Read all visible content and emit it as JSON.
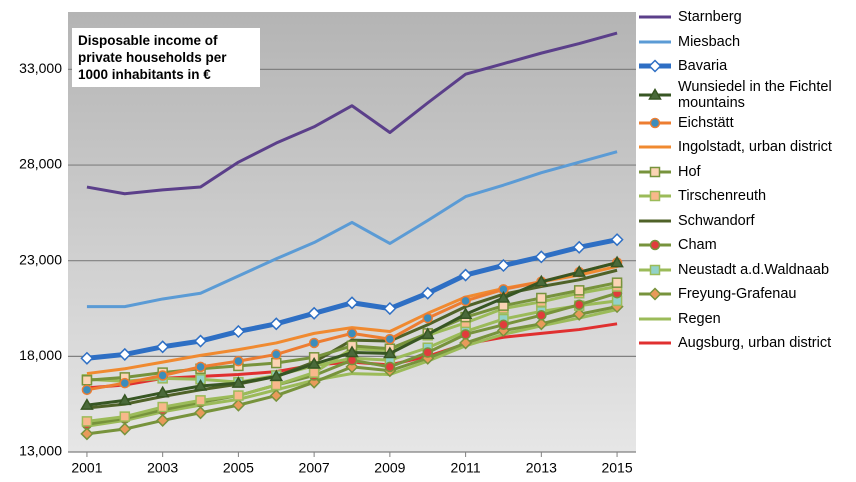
{
  "chart_data": {
    "type": "line",
    "title": "Disposable income of private households per 1000 inhabitants in €",
    "x": [
      2001,
      2002,
      2003,
      2004,
      2005,
      2006,
      2007,
      2008,
      2009,
      2010,
      2011,
      2012,
      2013,
      2014,
      2015
    ],
    "xlim": [
      2000.5,
      2015.5
    ],
    "xticks": [
      2001,
      2003,
      2005,
      2007,
      2009,
      2011,
      2013,
      2015
    ],
    "ylim": [
      13000,
      36000
    ],
    "yticks": [
      {
        "value": 13000,
        "label": "13,000"
      },
      {
        "value": 18000,
        "label": "18,000"
      },
      {
        "value": 23000,
        "label": "23,000"
      },
      {
        "value": 28000,
        "label": "28,000"
      },
      {
        "value": 33000,
        "label": "33,000"
      }
    ],
    "grid": true,
    "legend": "right",
    "series": [
      {
        "name": "Starnberg",
        "color": "#5b3f8a",
        "width": 3,
        "marker": "none",
        "values": [
          26850,
          26500,
          26700,
          26850,
          28150,
          29150,
          30000,
          31100,
          29700,
          31250,
          32750,
          33300,
          33850,
          34350,
          34900
        ]
      },
      {
        "name": "Miesbach",
        "color": "#5b9bd5",
        "width": 3,
        "marker": "none",
        "values": [
          20600,
          20600,
          21000,
          21300,
          22200,
          23100,
          23950,
          25000,
          23900,
          25100,
          26350,
          26950,
          27600,
          28150,
          28700
        ]
      },
      {
        "name": "Bavaria",
        "color": "#2e6fc4",
        "width": 5,
        "marker": "diamond",
        "marker_color": "#ffffff",
        "values": [
          17900,
          18100,
          18500,
          18800,
          19300,
          19700,
          20250,
          20800,
          20500,
          21300,
          22250,
          22750,
          23200,
          23700,
          24100
        ]
      },
      {
        "name": "Wunsiedel in the Fichtel mountains",
        "color": "#375623",
        "width": 3,
        "marker": "triangle",
        "marker_color": "#4a6a3a",
        "values": [
          15450,
          15700,
          16100,
          16450,
          16600,
          16950,
          17600,
          18200,
          18150,
          19150,
          20200,
          21050,
          21900,
          22400,
          22900
        ]
      },
      {
        "name": "Eichstätt",
        "color": "#ed7d31",
        "width": 3,
        "marker": "circle",
        "marker_color": "#3c8dbc",
        "values": [
          16250,
          16600,
          17000,
          17450,
          17750,
          18100,
          18700,
          19200,
          18900,
          20000,
          20900,
          21500,
          21900,
          22400,
          22900
        ]
      },
      {
        "name": "Ingolstadt, urban district",
        "color": "#f08a30",
        "width": 3,
        "marker": "none",
        "values": [
          17100,
          17350,
          17700,
          18050,
          18350,
          18700,
          19200,
          19500,
          19300,
          20250,
          21100,
          21550,
          21900,
          22250,
          22700
        ]
      },
      {
        "name": "Hof",
        "color": "#77933c",
        "width": 3,
        "marker": "square",
        "marker_color": "#fbd4b4",
        "values": [
          16750,
          16900,
          17150,
          17350,
          17500,
          17650,
          17950,
          18550,
          18400,
          19200,
          20050,
          20650,
          21050,
          21450,
          21850
        ]
      },
      {
        "name": "Tirschenreuth",
        "color": "#9bbb59",
        "width": 3,
        "marker": "square",
        "marker_color": "#f8b88b",
        "values": [
          14600,
          14850,
          15350,
          15700,
          15950,
          16500,
          17150,
          18400,
          18300,
          19100,
          19750,
          20500,
          20850,
          21300,
          21650
        ]
      },
      {
        "name": "Schwandorf",
        "color": "#4f6228",
        "width": 3,
        "marker": "none",
        "values": [
          15300,
          15500,
          15900,
          16250,
          16550,
          16950,
          17700,
          18850,
          18800,
          19650,
          20600,
          21250,
          21650,
          22000,
          22500
        ]
      },
      {
        "name": "Cham",
        "color": "#77933c",
        "width": 3,
        "marker": "circle",
        "marker_color": "#e03c3c",
        "values": [
          14450,
          14750,
          15200,
          15600,
          15950,
          16500,
          17000,
          17800,
          17450,
          18200,
          19150,
          19650,
          20150,
          20700,
          21300
        ]
      },
      {
        "name": "Neustadt a.d.Waldnaab",
        "color": "#9bbb59",
        "width": 3,
        "marker": "square",
        "marker_color": "#92d2c8",
        "values": [
          16800,
          16700,
          16850,
          16800,
          16650,
          17000,
          17500,
          17900,
          17800,
          18450,
          19300,
          19950,
          20350,
          20650,
          20900
        ]
      },
      {
        "name": "Freyung-Grafenau",
        "color": "#77933c",
        "width": 3,
        "marker": "diamond",
        "marker_color": "#e89a5a",
        "values": [
          13950,
          14200,
          14650,
          15050,
          15450,
          15950,
          16650,
          17450,
          17250,
          17900,
          18700,
          19350,
          19700,
          20200,
          20600
        ]
      },
      {
        "name": "Regen",
        "color": "#9bbb59",
        "width": 3,
        "marker": "none",
        "values": [
          14350,
          14650,
          15100,
          15450,
          15750,
          16250,
          16750,
          17100,
          17050,
          17750,
          18550,
          19150,
          19600,
          20000,
          20450
        ]
      },
      {
        "name": "Augsburg, urban district",
        "color": "#e03030",
        "width": 3,
        "marker": "none",
        "values": [
          16350,
          16500,
          16850,
          16950,
          17050,
          17200,
          17550,
          17700,
          17550,
          18000,
          18650,
          19000,
          19200,
          19400,
          19700
        ]
      }
    ]
  }
}
